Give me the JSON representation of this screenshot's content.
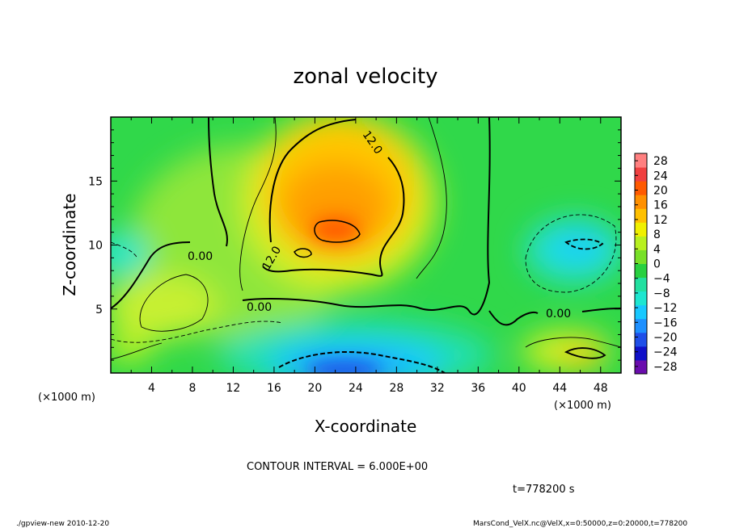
{
  "chart_data": {
    "type": "heatmap",
    "title": "zonal velocity",
    "xlabel": "X-coordinate",
    "ylabel": "Z-coordinate",
    "xunit": "(×1000 m)",
    "yunit": "(×1000 m)",
    "xlim": [
      0,
      50
    ],
    "ylim": [
      0,
      20
    ],
    "xticks": [
      "4",
      "8",
      "12",
      "16",
      "20",
      "24",
      "28",
      "32",
      "36",
      "40",
      "44",
      "48"
    ],
    "yticks": [
      "5",
      "10",
      "15"
    ],
    "colorbar": {
      "ticks": [
        "28",
        "24",
        "20",
        "16",
        "12",
        "8",
        "4",
        "0",
        "−4",
        "−8",
        "−12",
        "−16",
        "−20",
        "−24",
        "−28"
      ],
      "range": [
        -30,
        30
      ],
      "colors": [
        "#6a0dad",
        "#1010c8",
        "#1f4fe8",
        "#1e90ff",
        "#18c8ff",
        "#1ee6d0",
        "#22e0a0",
        "#28d040",
        "#78e028",
        "#b8f020",
        "#f0f000",
        "#ffc000",
        "#ff9000",
        "#ff5a00",
        "#f04040",
        "#ff8080"
      ]
    },
    "contour_labels": [
      "0.00",
      "12.0",
      "12.0",
      "0.00",
      "0.00"
    ],
    "contour_interval": "CONTOUR INTERVAL = 6.000E+00",
    "time": "t=778200 s"
  },
  "footer": {
    "left": "./gpview-new  2010-12-20",
    "right": "MarsCond_VelX.nc@VelX,x=0:50000,z=0:20000,t=778200"
  }
}
